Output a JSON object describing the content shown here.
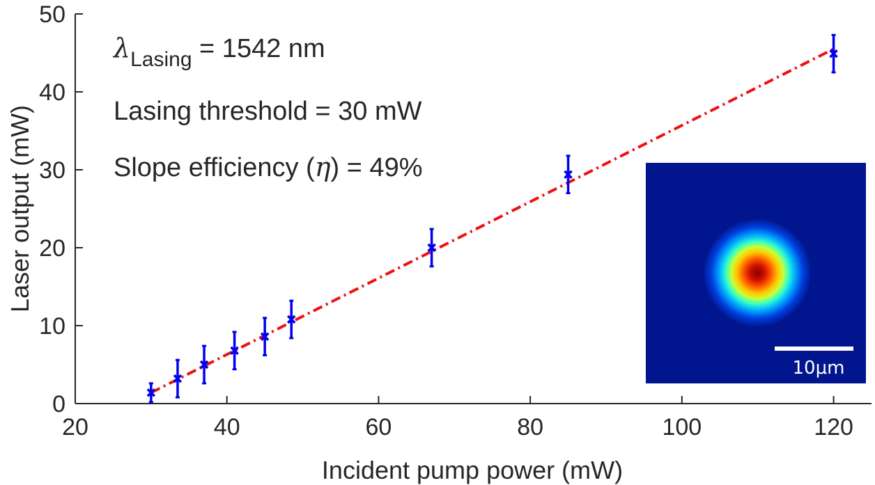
{
  "chart_data": {
    "type": "scatter",
    "xlabel": "Incident pump power (mW)",
    "ylabel": "Laser output (mW)",
    "xlim": [
      20,
      125
    ],
    "ylim": [
      0,
      50
    ],
    "xticks": [
      20,
      40,
      60,
      80,
      100,
      120
    ],
    "yticks": [
      0,
      10,
      20,
      30,
      40,
      50
    ],
    "grid": false,
    "legend": "none",
    "series": [
      {
        "marker": "x",
        "color": "#0000ee",
        "x": [
          30,
          33.5,
          37,
          41,
          45,
          48.5,
          67,
          85,
          120
        ],
        "y": [
          1.4,
          3.2,
          5.0,
          6.8,
          8.6,
          10.8,
          20.0,
          29.4,
          44.9
        ],
        "error": [
          1.2,
          2.4,
          2.4,
          2.4,
          2.4,
          2.4,
          2.4,
          2.4,
          2.4
        ]
      }
    ],
    "fit": {
      "style": "dash-dot",
      "color": "#ee1111",
      "x": [
        30,
        120
      ],
      "y": [
        1.4,
        45.5
      ]
    },
    "annotations": {
      "lambda_symbol": "λ",
      "lambda_subscript": "Lasing",
      "lambda_value": " = 1542 nm",
      "threshold": "Lasing threshold = 30 mW",
      "slope_prefix": "Slope efficiency (",
      "slope_symbol": "η",
      "slope_suffix": ") = 49%"
    },
    "inset": {
      "description_colormap": "jet",
      "scale_bar_label": "10μm"
    }
  }
}
